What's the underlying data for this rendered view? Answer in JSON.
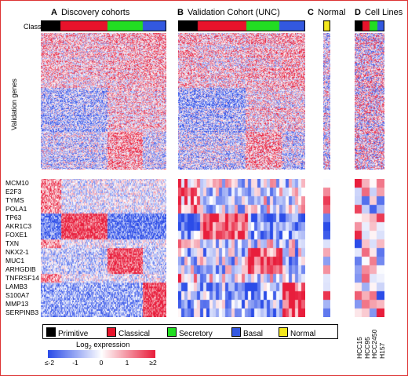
{
  "panels": {
    "a": {
      "letter": "A",
      "title": "Discovery cohorts"
    },
    "b": {
      "letter": "B",
      "title": "Validation Cohort (UNC)"
    },
    "c": {
      "letter": "C",
      "title": "Normal"
    },
    "d": {
      "letter": "D",
      "title": "Cell Lines"
    }
  },
  "class_label": "Class",
  "validation_genes_label": "Validation genes",
  "genes": [
    "MCM10",
    "E2F3",
    "TYMS",
    "POLA1",
    "TP63",
    "AKR1C3",
    "FOXE1",
    "TXN",
    "NKX2-1",
    "MUC1",
    "ARHGDIB",
    "TNFRSF14",
    "LAMB3",
    "S100A7",
    "MMP13",
    "SERPINB3"
  ],
  "cell_lines": [
    "HCC15",
    "HCC95",
    "HCC2450",
    "H157"
  ],
  "legend": [
    {
      "label": "Primitive",
      "color": "#000000"
    },
    {
      "label": "Classical",
      "color": "#e8132b"
    },
    {
      "label": "Secretory",
      "color": "#22dd22"
    },
    {
      "label": "Basal",
      "color": "#3358e0"
    },
    {
      "label": "Normal",
      "color": "#f4e81e"
    }
  ],
  "colorbar": {
    "title": "Log",
    "subscript": "2",
    "title_rest": " expression",
    "ticks": [
      "≤-2",
      "-1",
      "0",
      "1",
      "≥2"
    ],
    "low_color": "#2b4ce8",
    "mid_color": "#ffffff",
    "high_color": "#e81e3c"
  }
}
